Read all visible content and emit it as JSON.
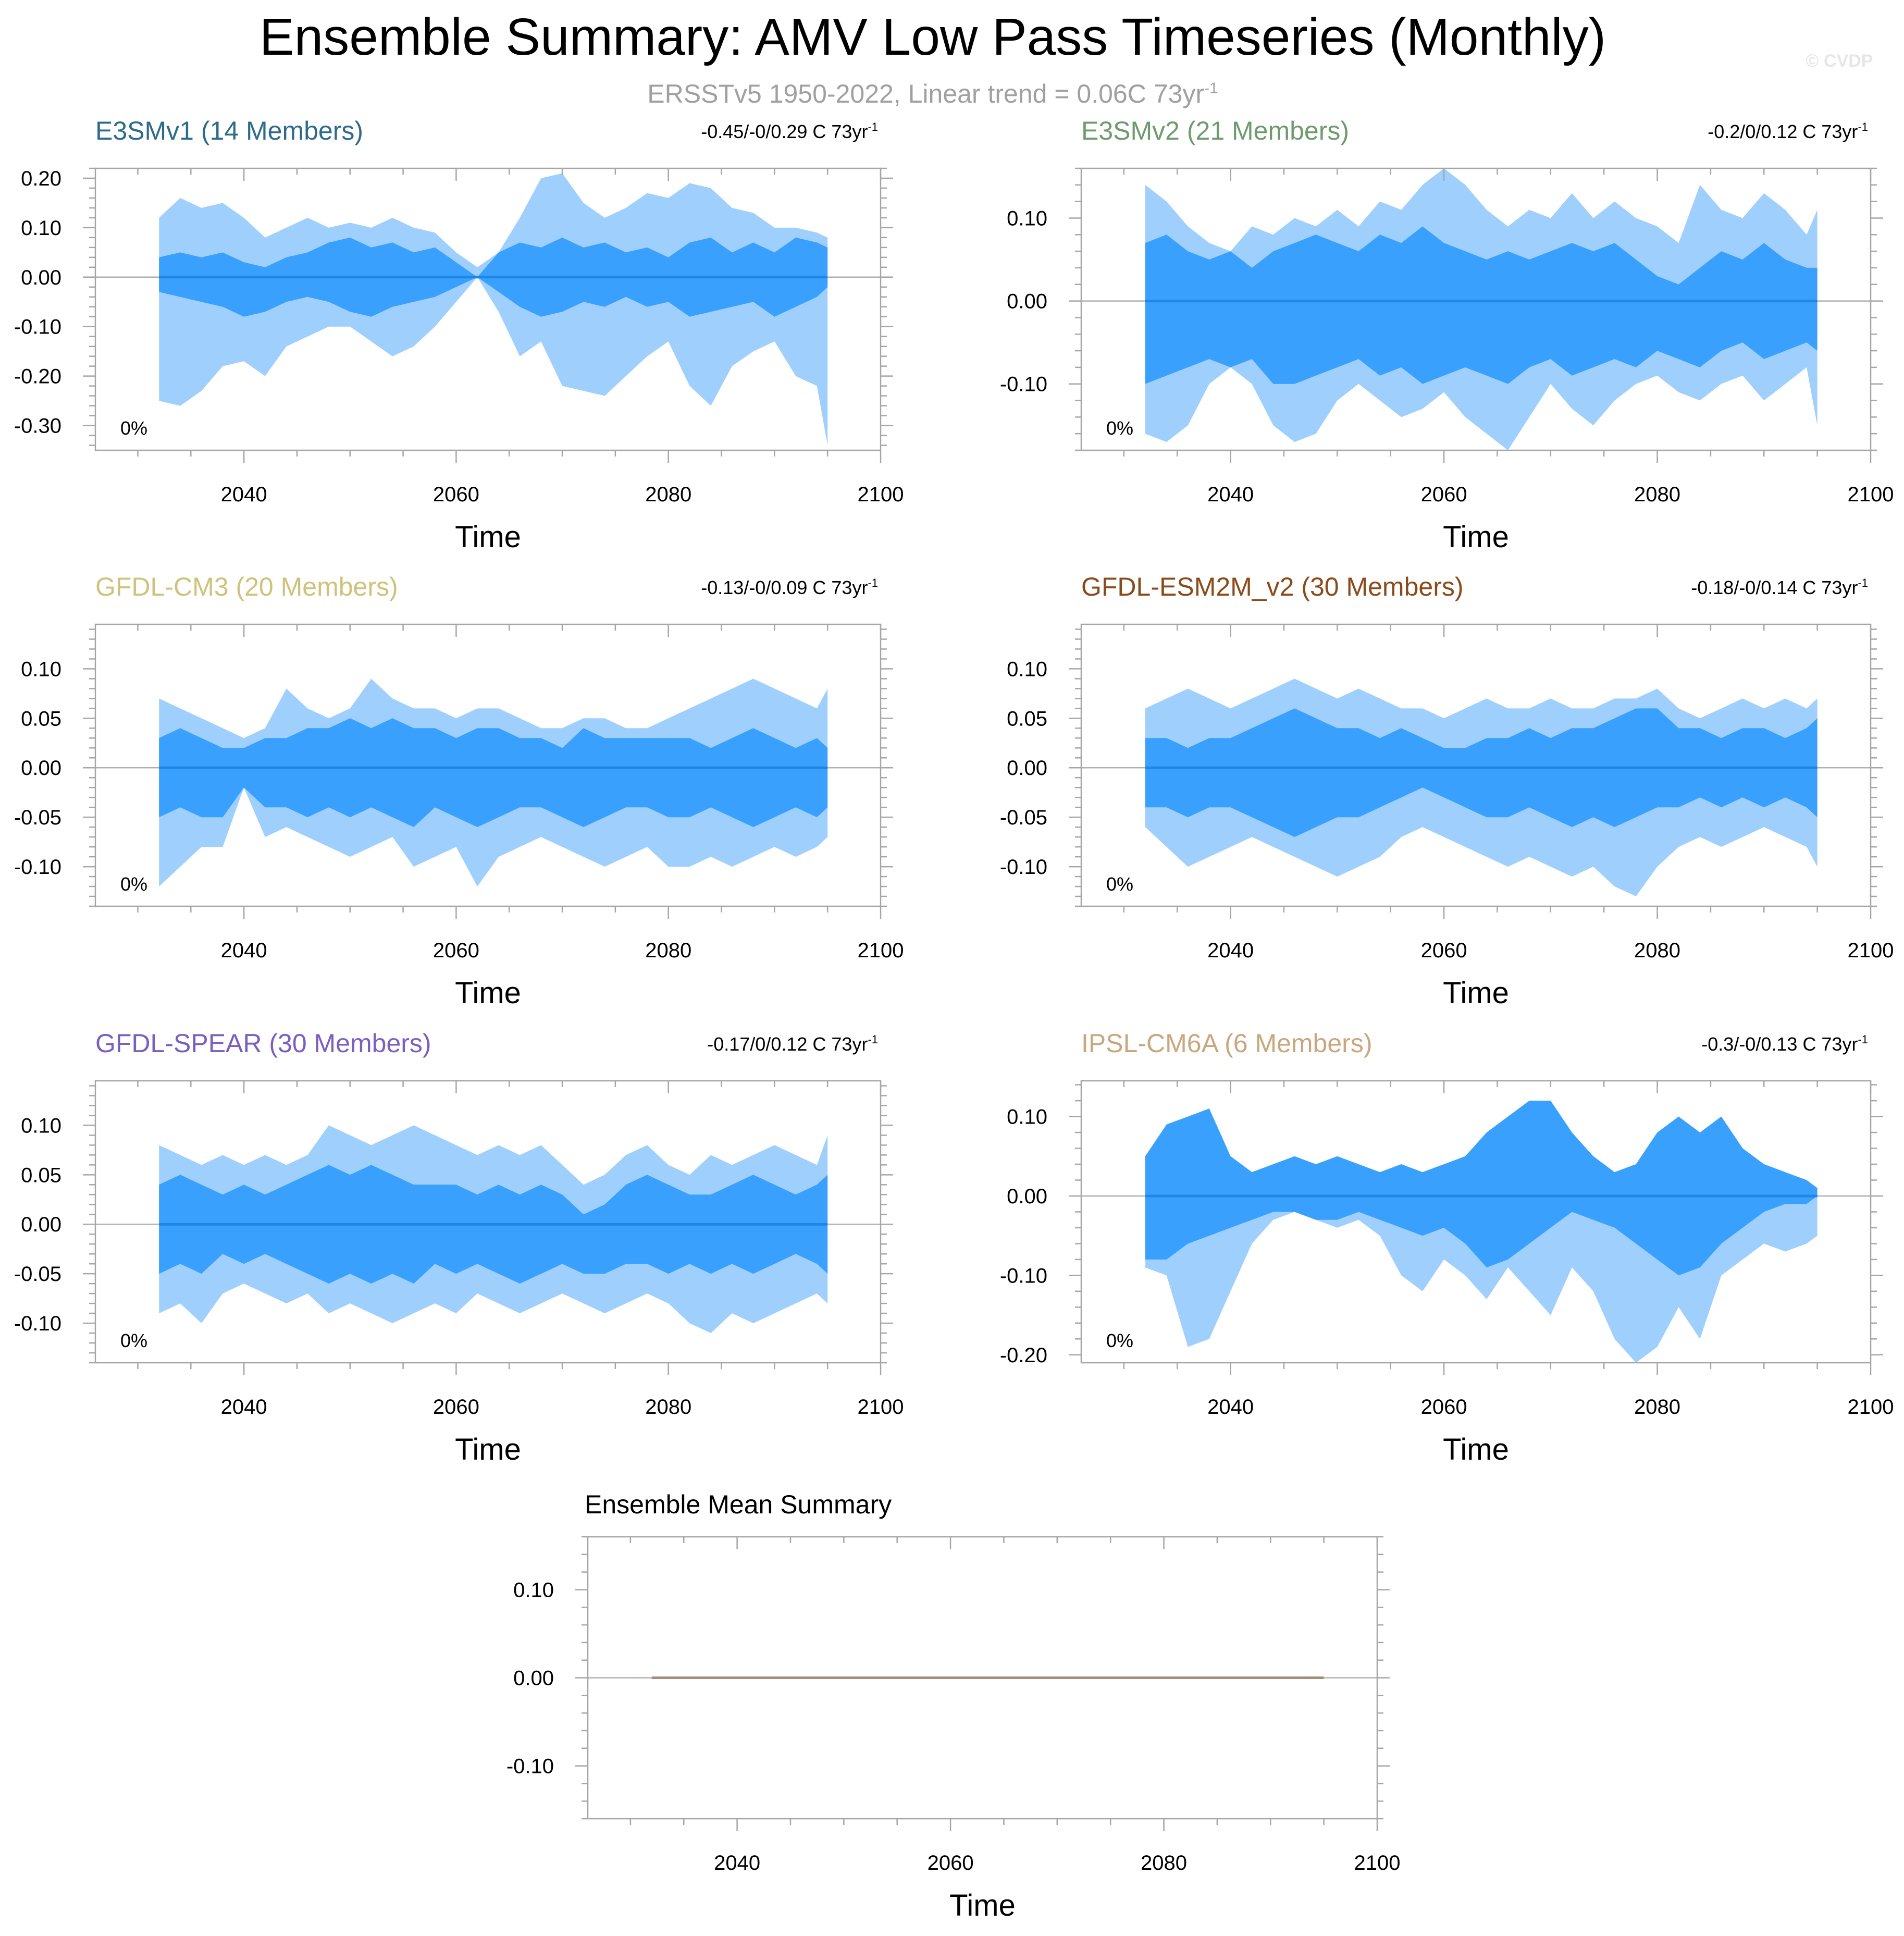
{
  "header": {
    "title": "Ensemble Summary: AMV Low Pass Timeseries (Monthly)",
    "subtitle": "ERSSTv5 1950-2022, Linear trend = 0.06C 73yr",
    "subtitle_sup": "-1",
    "copyright": "© CVDP"
  },
  "colors": {
    "outer_band": "#9fcffd",
    "inner_band": "#3aa0fd",
    "mean_line": "#1d86e6",
    "frame": "#a6a6a6"
  },
  "chart_data": [
    {
      "type": "area",
      "name": "E3SMv1 (14 Members)",
      "name_color": "#2e6b8a",
      "trend_text": "-0.45/-0/0.29 C 73yr",
      "trend_sup": "-1",
      "percent_label": "0%",
      "xlabel": "Time",
      "xlim": [
        2026,
        2100
      ],
      "ylim": [
        -0.35,
        0.22
      ],
      "x_ticks": [
        2040,
        2060,
        2080,
        2100
      ],
      "y_ticks": [
        -0.3,
        -0.2,
        -0.1,
        0.0,
        0.1,
        0.2
      ],
      "y_tick_labels": [
        "-0.30",
        "-0.20",
        "-0.10",
        "0.00",
        "0.10",
        "0.20"
      ],
      "x": [
        2032,
        2034,
        2036,
        2038,
        2040,
        2042,
        2044,
        2046,
        2048,
        2050,
        2052,
        2054,
        2056,
        2058,
        2060,
        2062,
        2064,
        2066,
        2068,
        2070,
        2072,
        2074,
        2076,
        2078,
        2080,
        2082,
        2084,
        2086,
        2088,
        2090,
        2092,
        2094,
        2095
      ],
      "outer_upper": [
        0.12,
        0.16,
        0.14,
        0.15,
        0.12,
        0.08,
        0.1,
        0.12,
        0.1,
        0.11,
        0.1,
        0.12,
        0.1,
        0.09,
        0.05,
        0.02,
        0.05,
        0.12,
        0.2,
        0.21,
        0.15,
        0.12,
        0.14,
        0.17,
        0.16,
        0.19,
        0.18,
        0.14,
        0.13,
        0.1,
        0.1,
        0.09,
        0.08
      ],
      "outer_lower": [
        -0.25,
        -0.26,
        -0.23,
        -0.18,
        -0.17,
        -0.2,
        -0.14,
        -0.12,
        -0.1,
        -0.1,
        -0.13,
        -0.16,
        -0.14,
        -0.1,
        -0.05,
        0.0,
        -0.07,
        -0.16,
        -0.13,
        -0.22,
        -0.23,
        -0.24,
        -0.2,
        -0.16,
        -0.13,
        -0.22,
        -0.26,
        -0.18,
        -0.15,
        -0.13,
        -0.2,
        -0.22,
        -0.34
      ],
      "inner_upper": [
        0.04,
        0.05,
        0.04,
        0.05,
        0.03,
        0.02,
        0.04,
        0.05,
        0.07,
        0.08,
        0.06,
        0.07,
        0.05,
        0.06,
        0.03,
        0.0,
        0.05,
        0.07,
        0.06,
        0.08,
        0.06,
        0.07,
        0.05,
        0.06,
        0.04,
        0.07,
        0.08,
        0.05,
        0.07,
        0.05,
        0.08,
        0.07,
        0.06
      ],
      "inner_lower": [
        -0.03,
        -0.04,
        -0.05,
        -0.06,
        -0.08,
        -0.07,
        -0.05,
        -0.04,
        -0.05,
        -0.07,
        -0.08,
        -0.06,
        -0.05,
        -0.04,
        -0.02,
        0.0,
        -0.03,
        -0.06,
        -0.08,
        -0.07,
        -0.05,
        -0.06,
        -0.04,
        -0.06,
        -0.05,
        -0.08,
        -0.07,
        -0.06,
        -0.05,
        -0.08,
        -0.06,
        -0.04,
        -0.02
      ],
      "mean": 0.0
    },
    {
      "type": "area",
      "name": "E3SMv2 (21 Members)",
      "name_color": "#6e9b6e",
      "trend_text": "-0.2/0/0.12 C 73yr",
      "trend_sup": "-1",
      "percent_label": "0%",
      "xlabel": "Time",
      "xlim": [
        2026,
        2100
      ],
      "ylim": [
        -0.18,
        0.16
      ],
      "x_ticks": [
        2040,
        2060,
        2080,
        2100
      ],
      "y_ticks": [
        -0.1,
        0.0,
        0.1
      ],
      "y_tick_labels": [
        "-0.10",
        "0.00",
        "0.10"
      ],
      "x": [
        2032,
        2034,
        2036,
        2038,
        2040,
        2042,
        2044,
        2046,
        2048,
        2050,
        2052,
        2054,
        2056,
        2058,
        2060,
        2062,
        2064,
        2066,
        2068,
        2070,
        2072,
        2074,
        2076,
        2078,
        2080,
        2082,
        2084,
        2086,
        2088,
        2090,
        2092,
        2094,
        2095
      ],
      "outer_upper": [
        0.14,
        0.12,
        0.09,
        0.07,
        0.06,
        0.09,
        0.08,
        0.1,
        0.09,
        0.11,
        0.09,
        0.12,
        0.11,
        0.14,
        0.16,
        0.14,
        0.11,
        0.09,
        0.11,
        0.1,
        0.13,
        0.1,
        0.12,
        0.1,
        0.09,
        0.07,
        0.14,
        0.11,
        0.1,
        0.13,
        0.11,
        0.08,
        0.11
      ],
      "outer_lower": [
        -0.16,
        -0.17,
        -0.15,
        -0.1,
        -0.08,
        -0.1,
        -0.15,
        -0.17,
        -0.16,
        -0.12,
        -0.1,
        -0.12,
        -0.14,
        -0.13,
        -0.11,
        -0.14,
        -0.16,
        -0.18,
        -0.14,
        -0.1,
        -0.13,
        -0.15,
        -0.12,
        -0.1,
        -0.09,
        -0.11,
        -0.12,
        -0.1,
        -0.09,
        -0.12,
        -0.1,
        -0.08,
        -0.15
      ],
      "inner_upper": [
        0.07,
        0.08,
        0.06,
        0.05,
        0.06,
        0.04,
        0.06,
        0.07,
        0.08,
        0.07,
        0.06,
        0.08,
        0.07,
        0.09,
        0.07,
        0.06,
        0.05,
        0.06,
        0.05,
        0.06,
        0.07,
        0.06,
        0.07,
        0.05,
        0.03,
        0.02,
        0.04,
        0.06,
        0.05,
        0.07,
        0.05,
        0.04,
        0.04
      ],
      "inner_lower": [
        -0.1,
        -0.09,
        -0.08,
        -0.07,
        -0.08,
        -0.07,
        -0.1,
        -0.1,
        -0.09,
        -0.08,
        -0.07,
        -0.09,
        -0.08,
        -0.1,
        -0.09,
        -0.08,
        -0.09,
        -0.1,
        -0.08,
        -0.07,
        -0.09,
        -0.08,
        -0.07,
        -0.08,
        -0.06,
        -0.07,
        -0.08,
        -0.06,
        -0.05,
        -0.07,
        -0.06,
        -0.05,
        -0.06
      ],
      "mean": 0.0
    },
    {
      "type": "area",
      "name": "GFDL-CM3 (20 Members)",
      "name_color": "#cfc27a",
      "trend_text": "-0.13/-0/0.09 C 73yr",
      "trend_sup": "-1",
      "percent_label": "0%",
      "xlabel": "Time",
      "xlim": [
        2026,
        2100
      ],
      "ylim": [
        -0.14,
        0.145
      ],
      "x_ticks": [
        2040,
        2060,
        2080,
        2100
      ],
      "y_ticks": [
        -0.1,
        -0.05,
        0.0,
        0.05,
        0.1
      ],
      "y_tick_labels": [
        "-0.10",
        "-0.05",
        "0.00",
        "0.05",
        "0.10"
      ],
      "x": [
        2032,
        2034,
        2036,
        2038,
        2040,
        2042,
        2044,
        2046,
        2048,
        2050,
        2052,
        2054,
        2056,
        2058,
        2060,
        2062,
        2064,
        2066,
        2068,
        2070,
        2072,
        2074,
        2076,
        2078,
        2080,
        2082,
        2084,
        2086,
        2088,
        2090,
        2092,
        2094,
        2095
      ],
      "outer_upper": [
        0.07,
        0.06,
        0.05,
        0.04,
        0.03,
        0.04,
        0.08,
        0.06,
        0.05,
        0.06,
        0.09,
        0.07,
        0.06,
        0.06,
        0.05,
        0.06,
        0.06,
        0.05,
        0.04,
        0.04,
        0.05,
        0.05,
        0.04,
        0.04,
        0.05,
        0.06,
        0.07,
        0.08,
        0.09,
        0.08,
        0.07,
        0.06,
        0.08
      ],
      "outer_lower": [
        -0.12,
        -0.1,
        -0.08,
        -0.08,
        -0.02,
        -0.07,
        -0.06,
        -0.07,
        -0.08,
        -0.09,
        -0.08,
        -0.07,
        -0.1,
        -0.09,
        -0.08,
        -0.12,
        -0.09,
        -0.08,
        -0.07,
        -0.08,
        -0.09,
        -0.1,
        -0.09,
        -0.08,
        -0.1,
        -0.1,
        -0.09,
        -0.1,
        -0.09,
        -0.08,
        -0.09,
        -0.08,
        -0.07
      ],
      "inner_upper": [
        0.03,
        0.04,
        0.03,
        0.02,
        0.02,
        0.03,
        0.03,
        0.04,
        0.04,
        0.05,
        0.04,
        0.05,
        0.04,
        0.04,
        0.03,
        0.04,
        0.04,
        0.03,
        0.03,
        0.02,
        0.04,
        0.03,
        0.03,
        0.03,
        0.03,
        0.03,
        0.02,
        0.03,
        0.04,
        0.03,
        0.02,
        0.03,
        0.02
      ],
      "inner_lower": [
        -0.05,
        -0.04,
        -0.05,
        -0.05,
        -0.02,
        -0.04,
        -0.04,
        -0.05,
        -0.04,
        -0.05,
        -0.04,
        -0.05,
        -0.06,
        -0.04,
        -0.05,
        -0.06,
        -0.05,
        -0.04,
        -0.04,
        -0.05,
        -0.06,
        -0.05,
        -0.04,
        -0.04,
        -0.05,
        -0.05,
        -0.04,
        -0.05,
        -0.06,
        -0.05,
        -0.04,
        -0.05,
        -0.04
      ],
      "mean": 0.0
    },
    {
      "type": "area",
      "name": "GFDL-ESM2M_v2 (30 Members)",
      "name_color": "#8a4a1a",
      "trend_text": "-0.18/-0/0.14 C 73yr",
      "trend_sup": "-1",
      "percent_label": "0%",
      "xlabel": "Time",
      "xlim": [
        2026,
        2100
      ],
      "ylim": [
        -0.14,
        0.145
      ],
      "x_ticks": [
        2040,
        2060,
        2080,
        2100
      ],
      "y_ticks": [
        -0.1,
        -0.05,
        0.0,
        0.05,
        0.1
      ],
      "y_tick_labels": [
        "-0.10",
        "-0.05",
        "0.00",
        "0.05",
        "0.10"
      ],
      "x": [
        2032,
        2034,
        2036,
        2038,
        2040,
        2042,
        2044,
        2046,
        2048,
        2050,
        2052,
        2054,
        2056,
        2058,
        2060,
        2062,
        2064,
        2066,
        2068,
        2070,
        2072,
        2074,
        2076,
        2078,
        2080,
        2082,
        2084,
        2086,
        2088,
        2090,
        2092,
        2094,
        2095
      ],
      "outer_upper": [
        0.06,
        0.07,
        0.08,
        0.07,
        0.06,
        0.07,
        0.08,
        0.09,
        0.08,
        0.07,
        0.08,
        0.07,
        0.06,
        0.06,
        0.05,
        0.06,
        0.07,
        0.06,
        0.06,
        0.07,
        0.06,
        0.06,
        0.07,
        0.07,
        0.08,
        0.06,
        0.05,
        0.06,
        0.07,
        0.06,
        0.07,
        0.06,
        0.07
      ],
      "outer_lower": [
        -0.06,
        -0.08,
        -0.1,
        -0.09,
        -0.08,
        -0.07,
        -0.08,
        -0.09,
        -0.1,
        -0.11,
        -0.1,
        -0.09,
        -0.07,
        -0.06,
        -0.07,
        -0.08,
        -0.09,
        -0.1,
        -0.09,
        -0.1,
        -0.11,
        -0.1,
        -0.12,
        -0.13,
        -0.1,
        -0.08,
        -0.07,
        -0.08,
        -0.07,
        -0.06,
        -0.07,
        -0.08,
        -0.1
      ],
      "inner_upper": [
        0.03,
        0.03,
        0.02,
        0.03,
        0.03,
        0.04,
        0.05,
        0.06,
        0.05,
        0.04,
        0.04,
        0.03,
        0.04,
        0.03,
        0.02,
        0.02,
        0.03,
        0.03,
        0.04,
        0.03,
        0.04,
        0.04,
        0.05,
        0.06,
        0.06,
        0.04,
        0.04,
        0.03,
        0.04,
        0.04,
        0.03,
        0.04,
        0.05
      ],
      "inner_lower": [
        -0.04,
        -0.04,
        -0.05,
        -0.04,
        -0.04,
        -0.05,
        -0.06,
        -0.07,
        -0.06,
        -0.05,
        -0.05,
        -0.04,
        -0.03,
        -0.02,
        -0.03,
        -0.04,
        -0.05,
        -0.05,
        -0.04,
        -0.05,
        -0.06,
        -0.05,
        -0.06,
        -0.05,
        -0.04,
        -0.04,
        -0.03,
        -0.04,
        -0.03,
        -0.04,
        -0.03,
        -0.04,
        -0.05
      ],
      "mean": 0.0
    },
    {
      "type": "area",
      "name": "GFDL-SPEAR (30 Members)",
      "name_color": "#7b5fc0",
      "trend_text": "-0.17/0/0.12 C 73yr",
      "trend_sup": "-1",
      "percent_label": "0%",
      "xlabel": "Time",
      "xlim": [
        2026,
        2100
      ],
      "ylim": [
        -0.14,
        0.145
      ],
      "x_ticks": [
        2040,
        2060,
        2080,
        2100
      ],
      "y_ticks": [
        -0.1,
        -0.05,
        0.0,
        0.05,
        0.1
      ],
      "y_tick_labels": [
        "-0.10",
        "-0.05",
        "0.00",
        "0.05",
        "0.10"
      ],
      "x": [
        2032,
        2034,
        2036,
        2038,
        2040,
        2042,
        2044,
        2046,
        2048,
        2050,
        2052,
        2054,
        2056,
        2058,
        2060,
        2062,
        2064,
        2066,
        2068,
        2070,
        2072,
        2074,
        2076,
        2078,
        2080,
        2082,
        2084,
        2086,
        2088,
        2090,
        2092,
        2094,
        2095
      ],
      "outer_upper": [
        0.08,
        0.07,
        0.06,
        0.07,
        0.06,
        0.07,
        0.06,
        0.07,
        0.1,
        0.09,
        0.08,
        0.09,
        0.1,
        0.09,
        0.08,
        0.07,
        0.08,
        0.07,
        0.08,
        0.06,
        0.04,
        0.05,
        0.07,
        0.08,
        0.06,
        0.05,
        0.07,
        0.06,
        0.07,
        0.08,
        0.07,
        0.06,
        0.09
      ],
      "outer_lower": [
        -0.09,
        -0.08,
        -0.1,
        -0.07,
        -0.06,
        -0.07,
        -0.08,
        -0.07,
        -0.09,
        -0.08,
        -0.09,
        -0.1,
        -0.09,
        -0.08,
        -0.09,
        -0.07,
        -0.08,
        -0.09,
        -0.08,
        -0.07,
        -0.08,
        -0.09,
        -0.08,
        -0.07,
        -0.08,
        -0.1,
        -0.11,
        -0.09,
        -0.1,
        -0.09,
        -0.08,
        -0.07,
        -0.08
      ],
      "inner_upper": [
        0.04,
        0.05,
        0.04,
        0.03,
        0.04,
        0.03,
        0.04,
        0.05,
        0.06,
        0.05,
        0.06,
        0.05,
        0.04,
        0.04,
        0.04,
        0.03,
        0.04,
        0.03,
        0.04,
        0.03,
        0.01,
        0.02,
        0.04,
        0.05,
        0.04,
        0.03,
        0.03,
        0.04,
        0.05,
        0.04,
        0.03,
        0.04,
        0.05
      ],
      "inner_lower": [
        -0.05,
        -0.04,
        -0.05,
        -0.03,
        -0.04,
        -0.03,
        -0.04,
        -0.05,
        -0.06,
        -0.05,
        -0.06,
        -0.05,
        -0.06,
        -0.04,
        -0.05,
        -0.04,
        -0.05,
        -0.06,
        -0.05,
        -0.04,
        -0.05,
        -0.05,
        -0.04,
        -0.04,
        -0.05,
        -0.04,
        -0.05,
        -0.04,
        -0.05,
        -0.04,
        -0.03,
        -0.04,
        -0.05
      ],
      "mean": 0.0
    },
    {
      "type": "area",
      "name": "IPSL-CM6A (6 Members)",
      "name_color": "#c9a77e",
      "trend_text": "-0.3/-0/0.13 C 73yr",
      "trend_sup": "-1",
      "percent_label": "0%",
      "xlabel": "Time",
      "xlim": [
        2026,
        2100
      ],
      "ylim": [
        -0.21,
        0.145
      ],
      "x_ticks": [
        2040,
        2060,
        2080,
        2100
      ],
      "y_ticks": [
        -0.2,
        -0.1,
        0.0,
        0.1
      ],
      "y_tick_labels": [
        "-0.20",
        "-0.10",
        "0.00",
        "0.10"
      ],
      "x": [
        2032,
        2034,
        2036,
        2038,
        2040,
        2042,
        2044,
        2046,
        2048,
        2050,
        2052,
        2054,
        2056,
        2058,
        2060,
        2062,
        2064,
        2066,
        2068,
        2070,
        2072,
        2074,
        2076,
        2078,
        2080,
        2082,
        2084,
        2086,
        2088,
        2090,
        2092,
        2094,
        2095
      ],
      "outer_upper": [
        0.05,
        0.09,
        0.1,
        0.11,
        0.05,
        0.03,
        0.04,
        0.05,
        0.04,
        0.05,
        0.04,
        0.03,
        0.04,
        0.03,
        0.04,
        0.05,
        0.08,
        0.1,
        0.12,
        0.12,
        0.08,
        0.05,
        0.03,
        0.04,
        0.08,
        0.1,
        0.08,
        0.1,
        0.06,
        0.04,
        0.03,
        0.02,
        0.01
      ],
      "outer_lower": [
        -0.09,
        -0.1,
        -0.19,
        -0.18,
        -0.12,
        -0.06,
        -0.03,
        -0.02,
        -0.03,
        -0.04,
        -0.03,
        -0.05,
        -0.1,
        -0.12,
        -0.08,
        -0.1,
        -0.13,
        -0.09,
        -0.12,
        -0.15,
        -0.09,
        -0.12,
        -0.18,
        -0.21,
        -0.19,
        -0.14,
        -0.18,
        -0.1,
        -0.08,
        -0.06,
        -0.07,
        -0.06,
        -0.05
      ],
      "inner_upper": [
        0.05,
        0.09,
        0.1,
        0.11,
        0.05,
        0.03,
        0.04,
        0.05,
        0.04,
        0.05,
        0.04,
        0.03,
        0.04,
        0.03,
        0.04,
        0.05,
        0.08,
        0.1,
        0.12,
        0.12,
        0.08,
        0.05,
        0.03,
        0.04,
        0.08,
        0.1,
        0.08,
        0.1,
        0.06,
        0.04,
        0.03,
        0.02,
        0.01
      ],
      "inner_lower": [
        -0.08,
        -0.08,
        -0.06,
        -0.05,
        -0.04,
        -0.03,
        -0.02,
        -0.02,
        -0.03,
        -0.03,
        -0.02,
        -0.03,
        -0.04,
        -0.05,
        -0.04,
        -0.06,
        -0.09,
        -0.08,
        -0.06,
        -0.04,
        -0.02,
        -0.03,
        -0.04,
        -0.06,
        -0.08,
        -0.1,
        -0.09,
        -0.06,
        -0.04,
        -0.02,
        -0.01,
        -0.01,
        0.0
      ],
      "mean": 0.0
    },
    {
      "type": "line",
      "name": "Ensemble Mean Summary",
      "name_color": "#000000",
      "xlabel": "Time",
      "xlim": [
        2026,
        2100
      ],
      "ylim": [
        -0.16,
        0.16
      ],
      "x_ticks": [
        2040,
        2060,
        2080,
        2100
      ],
      "y_ticks": [
        -0.1,
        0.0,
        0.1
      ],
      "y_tick_labels": [
        "-0.10",
        "0.00",
        "0.10"
      ],
      "series": [
        {
          "name": "ensemble mean",
          "color": "#a38f74",
          "x": [
            2032,
            2095
          ],
          "values": [
            0.0,
            0.0
          ]
        }
      ]
    }
  ]
}
